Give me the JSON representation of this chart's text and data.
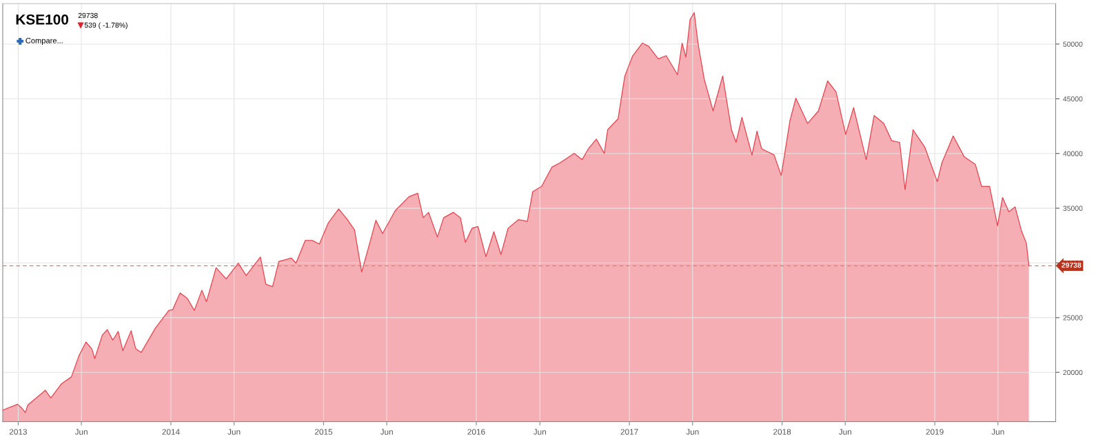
{
  "chart_data": {
    "type": "area",
    "title": "KSE100",
    "subtitle": "29738",
    "annotations": [
      "539 ( -1.78%)",
      "Compare..."
    ],
    "x": [
      "2012-11-25",
      "2012-12-30",
      "2013-01-09",
      "2013-01-18",
      "2013-01-24",
      "2013-03-07",
      "2013-03-20",
      "2013-04-14",
      "2013-05-08",
      "2013-05-26",
      "2013-06-12",
      "2013-06-26",
      "2013-07-03",
      "2013-07-21",
      "2013-08-02",
      "2013-08-15",
      "2013-08-28",
      "2013-09-08",
      "2013-09-28",
      "2013-10-09",
      "2013-10-22",
      "2013-11-25",
      "2013-12-27",
      "2014-01-05",
      "2014-01-23",
      "2014-02-09",
      "2014-02-26",
      "2014-03-16",
      "2014-03-27",
      "2014-04-19",
      "2014-05-13",
      "2014-06-11",
      "2014-06-30",
      "2014-08-03",
      "2014-08-16",
      "2014-09-01",
      "2014-09-16",
      "2014-10-16",
      "2014-10-27",
      "2014-11-18",
      "2014-12-05",
      "2014-12-22",
      "2015-01-12",
      "2015-02-06",
      "2015-02-27",
      "2015-03-16",
      "2015-04-02",
      "2015-04-23",
      "2015-05-06",
      "2015-05-22",
      "2015-06-21",
      "2015-07-24",
      "2015-08-14",
      "2015-08-27",
      "2015-09-09",
      "2015-09-30",
      "2015-10-15",
      "2015-11-07",
      "2015-11-24",
      "2015-12-06",
      "2015-12-22",
      "2016-01-05",
      "2016-01-24",
      "2016-02-12",
      "2016-02-29",
      "2016-03-17",
      "2016-04-11",
      "2016-05-02",
      "2016-05-15",
      "2016-06-05",
      "2016-06-30",
      "2016-07-19",
      "2016-08-22",
      "2016-09-10",
      "2016-09-25",
      "2016-10-14",
      "2016-11-02",
      "2016-11-10",
      "2016-12-05",
      "2016-12-21",
      "2017-01-09",
      "2017-02-01",
      "2017-02-16",
      "2017-03-11",
      "2017-03-30",
      "2017-04-26",
      "2017-05-07",
      "2017-05-16",
      "2017-05-26",
      "2017-06-05",
      "2017-06-14",
      "2017-06-29",
      "2017-07-20",
      "2017-08-12",
      "2017-09-02",
      "2017-09-13",
      "2017-09-27",
      "2017-10-21",
      "2017-11-02",
      "2017-11-13",
      "2017-12-13",
      "2017-12-30",
      "2018-01-20",
      "2018-02-03",
      "2018-03-03",
      "2018-03-29",
      "2018-04-20",
      "2018-05-10",
      "2018-06-02",
      "2018-06-21",
      "2018-07-21",
      "2018-08-09",
      "2018-09-01",
      "2018-09-20",
      "2018-10-09",
      "2018-10-22",
      "2018-11-10",
      "2018-12-08",
      "2019-01-07",
      "2019-01-18",
      "2019-02-14",
      "2019-03-12",
      "2019-04-08",
      "2019-04-23",
      "2019-05-12",
      "2019-05-31",
      "2019-06-12",
      "2019-06-27",
      "2019-07-12",
      "2019-07-27",
      "2019-08-08",
      "2019-08-14"
    ],
    "series": [
      {
        "color": "#e8404c",
        "values": [
          16550,
          17080,
          16760,
          16320,
          17020,
          18360,
          17660,
          18940,
          19580,
          21500,
          22770,
          22150,
          21250,
          23410,
          23900,
          22940,
          23740,
          21980,
          23800,
          22150,
          21820,
          24050,
          25660,
          25720,
          27250,
          26770,
          25660,
          27500,
          26450,
          29560,
          28540,
          29970,
          28850,
          30540,
          28050,
          27830,
          30130,
          30450,
          29980,
          32050,
          32050,
          31730,
          33640,
          34930,
          33960,
          33010,
          29170,
          32050,
          33900,
          32690,
          34770,
          36050,
          36370,
          34130,
          34620,
          32370,
          34130,
          34620,
          34130,
          31880,
          33170,
          33330,
          30570,
          32850,
          30770,
          33170,
          33960,
          33800,
          36520,
          36990,
          38760,
          39150,
          40010,
          39440,
          40440,
          41310,
          40010,
          42170,
          43180,
          47070,
          48940,
          50090,
          49800,
          48650,
          48940,
          47210,
          50090,
          48800,
          52250,
          52880,
          50090,
          46780,
          43900,
          47070,
          42170,
          41020,
          43300,
          39860,
          42030,
          40440,
          39860,
          37990,
          43040,
          45050,
          42750,
          43900,
          46640,
          45630,
          41740,
          44190,
          39440,
          43470,
          42750,
          41170,
          41020,
          36700,
          42170,
          40590,
          37420,
          39150,
          41600,
          39720,
          39000,
          36990,
          36990,
          33390,
          35980,
          34680,
          35120,
          32960,
          31800,
          29738
        ]
      }
    ],
    "xlim": [
      "2012-11-25",
      "2019-10-17"
    ],
    "xticks": [
      {
        "value": "2013-01-01",
        "label": "2013"
      },
      {
        "value": "2013-06-01",
        "label": "Jun"
      },
      {
        "value": "2014-01-01",
        "label": "2014"
      },
      {
        "value": "2014-06-01",
        "label": "Jun"
      },
      {
        "value": "2015-01-01",
        "label": "2015"
      },
      {
        "value": "2015-06-01",
        "label": "Jun"
      },
      {
        "value": "2016-01-01",
        "label": "2016"
      },
      {
        "value": "2016-06-01",
        "label": "Jun"
      },
      {
        "value": "2017-01-01",
        "label": "2017"
      },
      {
        "value": "2017-06-01",
        "label": "Jun"
      },
      {
        "value": "2018-01-01",
        "label": "2018"
      },
      {
        "value": "2018-06-01",
        "label": "Jun"
      },
      {
        "value": "2019-01-01",
        "label": "2019"
      },
      {
        "value": "2019-06-01",
        "label": "Jun"
      }
    ],
    "ylim": [
      15500,
      53700
    ],
    "yticks": [
      20000,
      25000,
      30000,
      35000,
      40000,
      45000,
      50000
    ],
    "ref_lines": [
      {
        "axis": "y",
        "value": 29738,
        "label": "29738",
        "color": "#e08060",
        "line_style": "dashed"
      }
    ],
    "grid": true
  }
}
